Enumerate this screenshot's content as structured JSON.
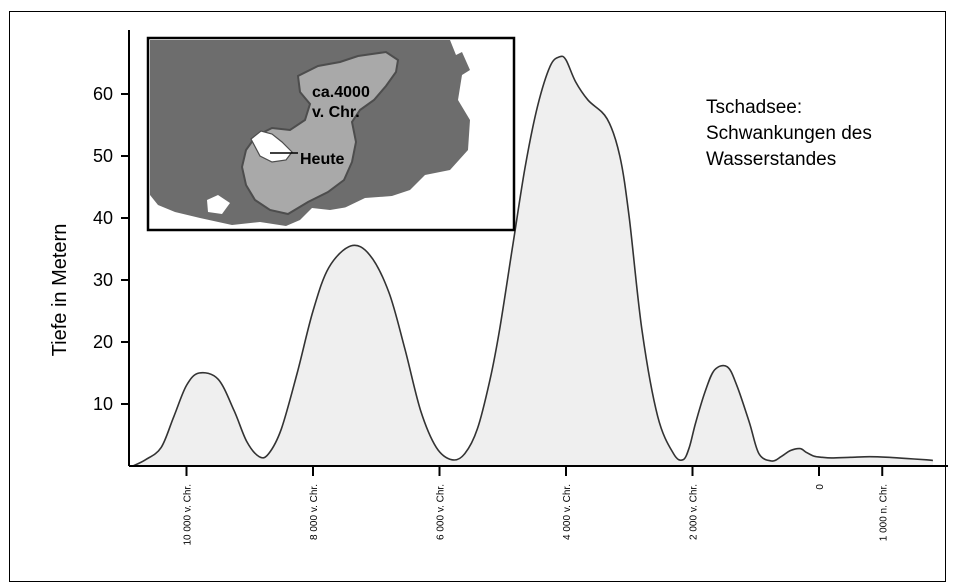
{
  "chart_data": {
    "type": "area",
    "title": "Tschadsee: Schwankungen des Wasserstandes",
    "title_lines": [
      "Tschadsee:",
      "Schwankungen des",
      "Wasserstandes"
    ],
    "ylabel": "Tiefe in Metern",
    "xlabel": "",
    "ylim": [
      0,
      70
    ],
    "yticks": [
      10,
      20,
      30,
      40,
      50,
      60
    ],
    "x_reversed_years_before_present": true,
    "xticks": [
      {
        "value": 10000,
        "label": "10 000 v. Chr."
      },
      {
        "value": 8000,
        "label": "8 000 v. Chr."
      },
      {
        "value": 6000,
        "label": "6 000 v. Chr."
      },
      {
        "value": 4000,
        "label": "4 000 v. Chr."
      },
      {
        "value": 2000,
        "label": "2 000 v. Chr."
      },
      {
        "value": 0,
        "label": "0"
      },
      {
        "value": -1000,
        "label": "1 000 n. Chr."
      }
    ],
    "grid": false,
    "fill_color": "#efefef",
    "line_color": "#333333",
    "series": [
      {
        "x": [
          10850,
          10650,
          10400,
          10200,
          10000,
          9800,
          9500,
          9250,
          9050,
          8850,
          8700,
          8500,
          8250,
          8000,
          7750,
          7400,
          7100,
          6800,
          6550,
          6300,
          6050,
          5800,
          5600,
          5400,
          5200,
          5050,
          4850,
          4650,
          4450,
          4250,
          4100,
          4000,
          3850,
          3650,
          3350,
          3150,
          3000,
          2800,
          2550,
          2300,
          2150,
          2050,
          1950,
          1800,
          1650,
          1450,
          1300,
          1100,
          950,
          750,
          600,
          450,
          300,
          200,
          80,
          -50,
          -200,
          -500,
          -800,
          -1100,
          -1400,
          -1700,
          -1800
        ],
        "y": [
          0,
          1,
          3,
          8,
          13,
          15,
          14,
          9,
          4,
          1.5,
          2,
          6,
          15,
          25,
          32,
          35.5,
          34,
          28,
          19,
          9,
          3,
          1,
          2,
          6,
          14,
          22,
          35,
          48,
          58,
          64.5,
          66,
          65.5,
          62,
          59,
          56,
          50,
          40,
          22,
          8,
          2,
          1,
          3,
          7,
          12,
          15.5,
          16,
          13,
          7,
          2,
          0.8,
          1.5,
          2.5,
          2.8,
          2.2,
          1.6,
          1.4,
          1.3,
          1.4,
          1.5,
          1.4,
          1.2,
          1.0,
          0.9
        ]
      }
    ]
  },
  "inset": {
    "label_past": "ca.4000 v. Chr.",
    "label_past_lines": [
      "ca.4000",
      "v. Chr."
    ],
    "label_today": "Heute",
    "land_color": "#ffffff",
    "water_color": "#6d6d6d",
    "lake_past_color": "#a9a9a9",
    "lake_today_color": "#ffffff"
  }
}
